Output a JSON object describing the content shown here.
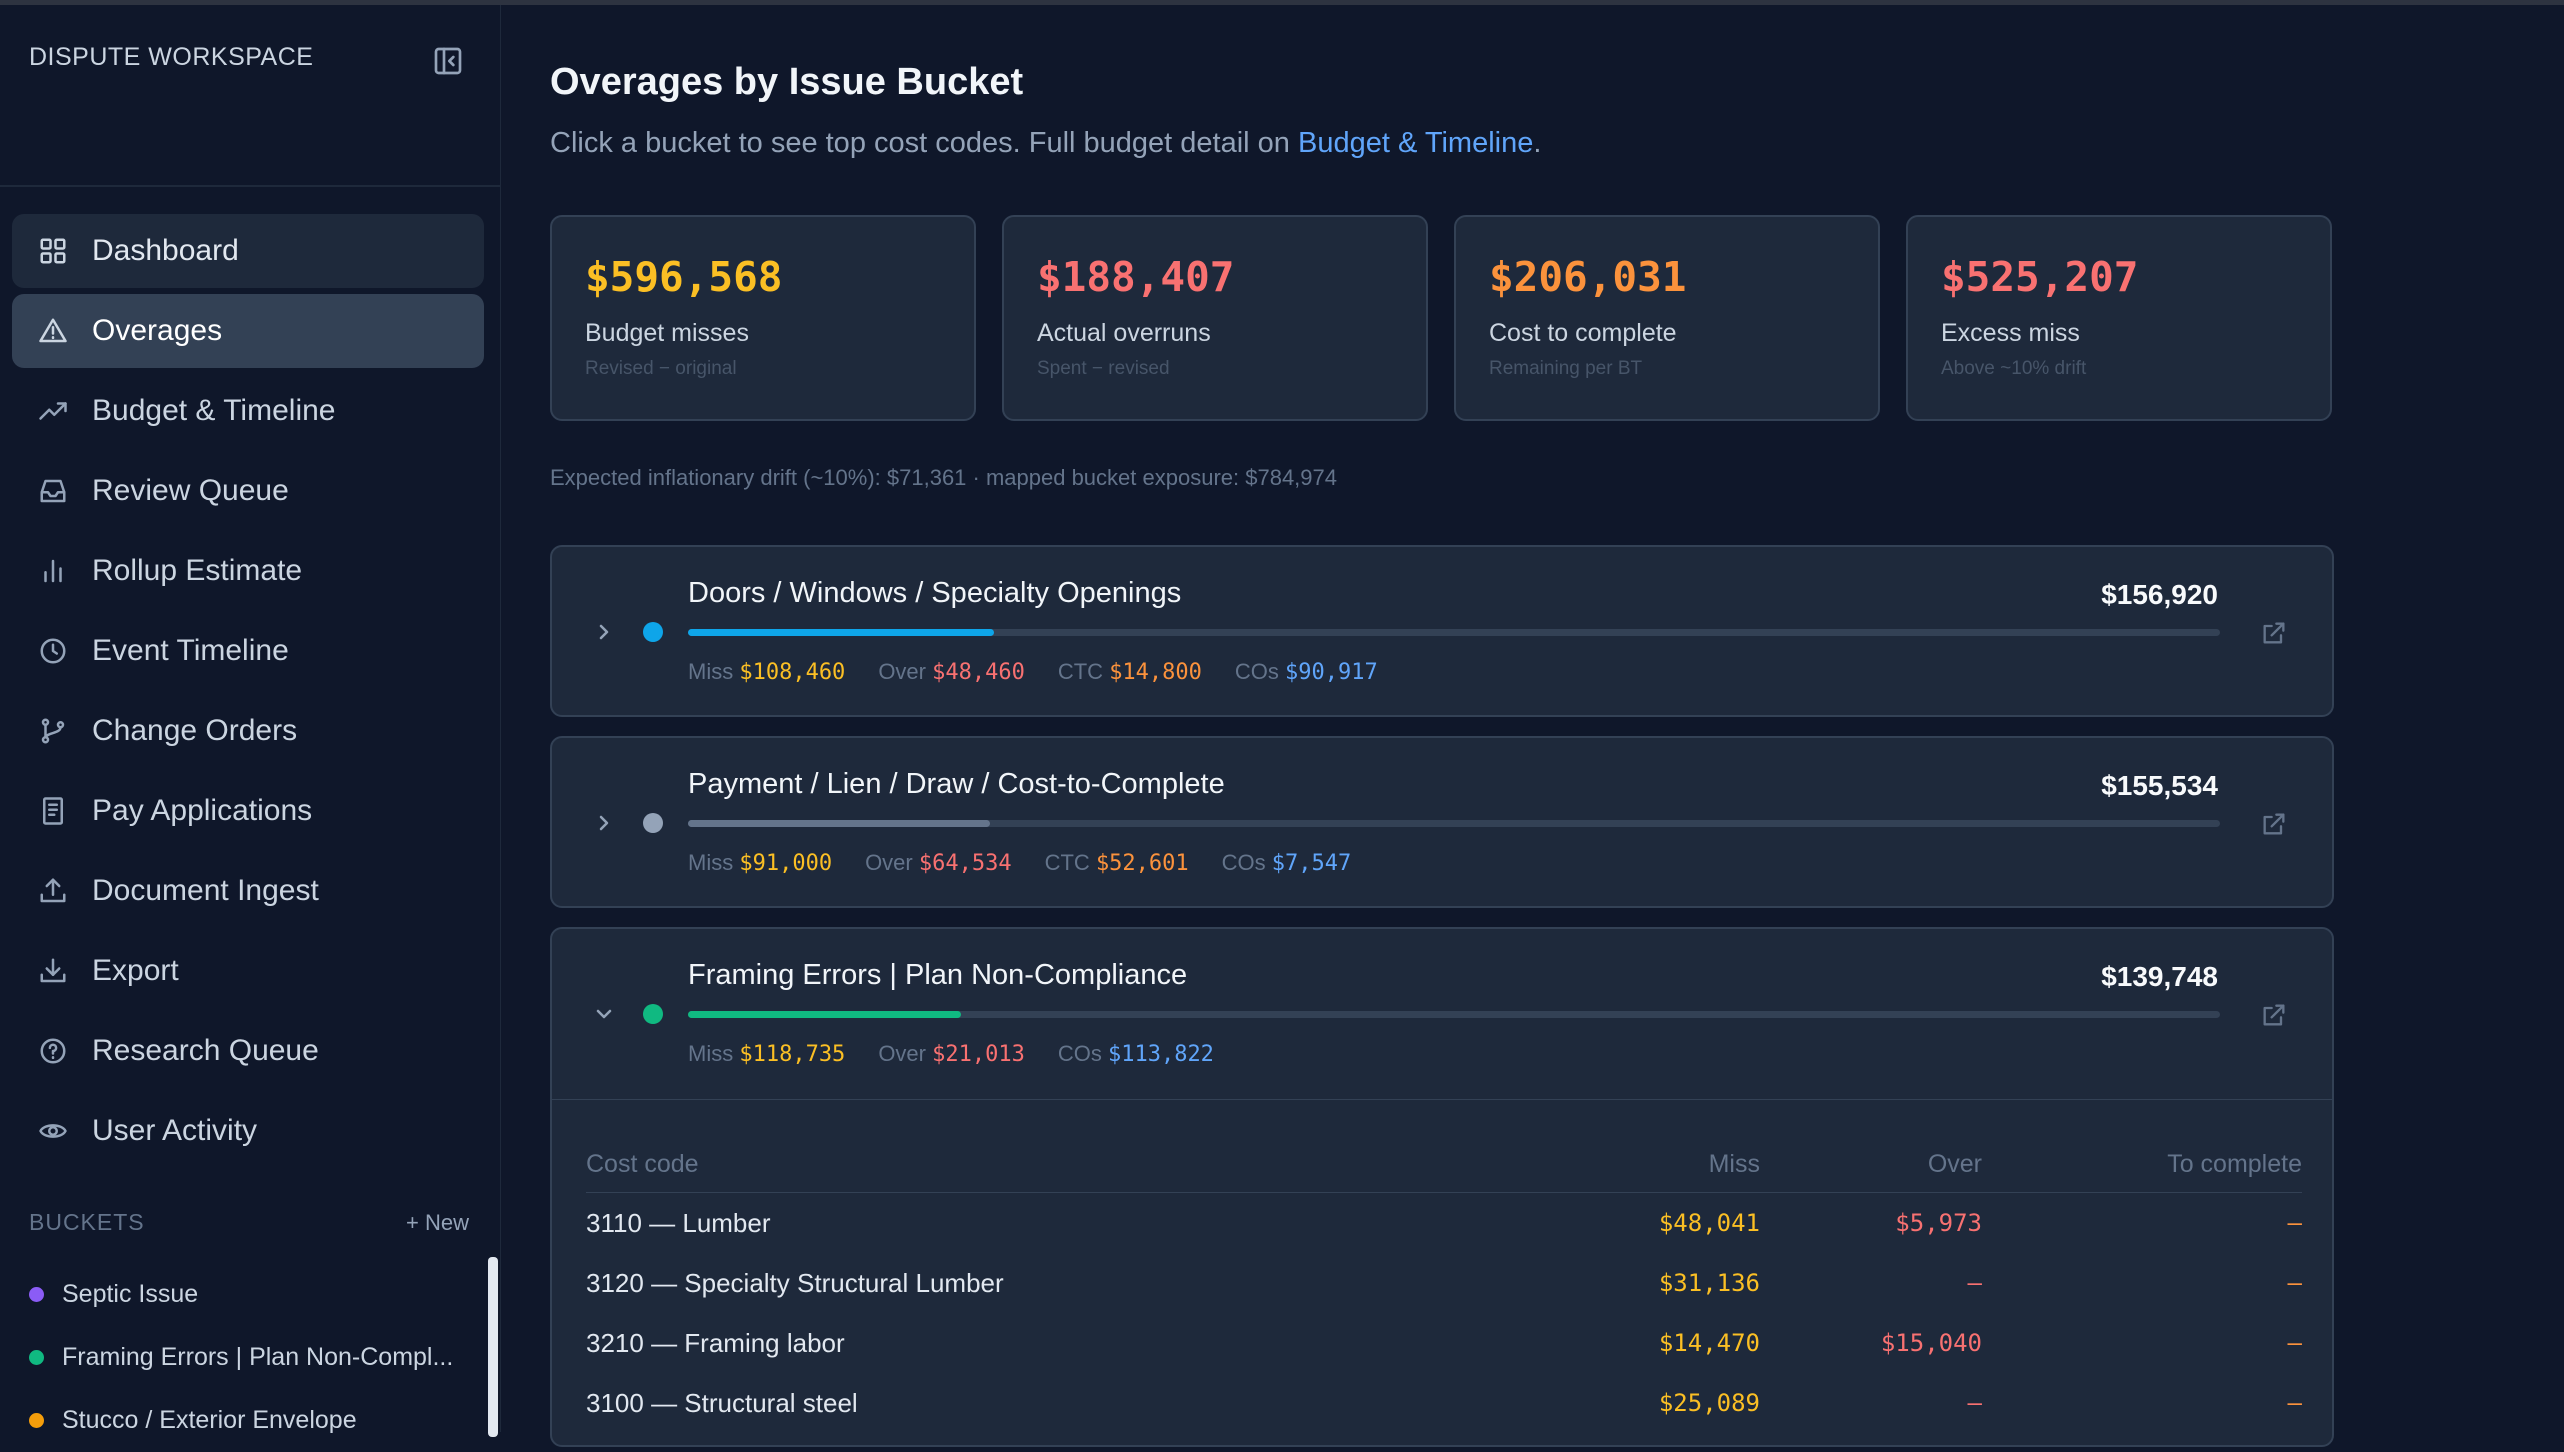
{
  "sidebar": {
    "workspace_title": "DISPUTE WORKSPACE",
    "nav": [
      {
        "label": "Dashboard",
        "icon": "dashboard-grid-icon"
      },
      {
        "label": "Overages",
        "icon": "warning-triangle-icon"
      },
      {
        "label": "Budget & Timeline",
        "icon": "trending-up-icon"
      },
      {
        "label": "Review Queue",
        "icon": "inbox-icon"
      },
      {
        "label": "Rollup Estimate",
        "icon": "bar-chart-icon"
      },
      {
        "label": "Event Timeline",
        "icon": "clock-icon"
      },
      {
        "label": "Change Orders",
        "icon": "git-branch-icon"
      },
      {
        "label": "Pay Applications",
        "icon": "receipt-icon"
      },
      {
        "label": "Document Ingest",
        "icon": "upload-icon"
      },
      {
        "label": "Export",
        "icon": "download-icon"
      },
      {
        "label": "Research Queue",
        "icon": "help-circle-icon"
      },
      {
        "label": "User Activity",
        "icon": "eye-icon"
      }
    ],
    "buckets_title": "BUCKETS",
    "new_label": "+ New",
    "buckets": [
      {
        "label": "Septic Issue",
        "color": "#8b5cf6"
      },
      {
        "label": "Framing Errors | Plan Non-Compl...",
        "color": "#10b981"
      },
      {
        "label": "Stucco / Exterior Envelope",
        "color": "#f59e0b"
      }
    ]
  },
  "main": {
    "title": "Overages by Issue Bucket",
    "subtitle_prefix": "Click a bucket to see top cost codes. Full budget detail on ",
    "subtitle_link": "Budget & Timeline",
    "subtitle_suffix": ".",
    "stats": [
      {
        "value": "$596,568",
        "label": "Budget misses",
        "hint": "Revised − original",
        "color": "#fbbf24"
      },
      {
        "value": "$188,407",
        "label": "Actual overruns",
        "hint": "Spent − revised",
        "color": "#f87171"
      },
      {
        "value": "$206,031",
        "label": "Cost to complete",
        "hint": "Remaining per BT",
        "color": "#fb923c"
      },
      {
        "value": "$525,207",
        "label": "Excess miss",
        "hint": "Above ~10% drift",
        "color": "#f87171"
      }
    ],
    "drift_note": "Expected inflationary drift (~10%): $71,361 · mapped bucket exposure: $784,974",
    "buckets": [
      {
        "name": "Doors / Windows / Specialty Openings",
        "total": "$156,920",
        "dot_color": "#0ea5e9",
        "bar_color": "#0ea5e9",
        "progress": 0.2,
        "expanded": false,
        "metrics": [
          {
            "label": "Miss",
            "value": "$108,460",
            "color": "#fbbf24"
          },
          {
            "label": "Over",
            "value": "$48,460",
            "color": "#f87171"
          },
          {
            "label": "CTC",
            "value": "$14,800",
            "color": "#fb923c"
          },
          {
            "label": "COs",
            "value": "$90,917",
            "color": "#60a5fa"
          }
        ]
      },
      {
        "name": "Payment / Lien / Draw / Cost-to-Complete",
        "total": "$155,534",
        "dot_color": "#94a3b8",
        "bar_color": "#64748b",
        "progress": 0.197,
        "expanded": false,
        "metrics": [
          {
            "label": "Miss",
            "value": "$91,000",
            "color": "#fbbf24"
          },
          {
            "label": "Over",
            "value": "$64,534",
            "color": "#f87171"
          },
          {
            "label": "CTC",
            "value": "$52,601",
            "color": "#fb923c"
          },
          {
            "label": "COs",
            "value": "$7,547",
            "color": "#60a5fa"
          }
        ]
      },
      {
        "name": "Framing Errors | Plan Non-Compliance",
        "total": "$139,748",
        "dot_color": "#10b981",
        "bar_color": "#10b981",
        "progress": 0.178,
        "expanded": true,
        "metrics": [
          {
            "label": "Miss",
            "value": "$118,735",
            "color": "#fbbf24"
          },
          {
            "label": "Over",
            "value": "$21,013",
            "color": "#f87171"
          },
          {
            "label": "COs",
            "value": "$113,822",
            "color": "#60a5fa"
          }
        ],
        "cost_codes": {
          "headers": [
            "Cost code",
            "Miss",
            "Over",
            "To complete"
          ],
          "rows": [
            {
              "code": "3110 — Lumber",
              "miss": "$48,041",
              "over": "$5,973",
              "to_complete": "–"
            },
            {
              "code": "3120 — Specialty Structural Lumber",
              "miss": "$31,136",
              "over": "–",
              "to_complete": "–"
            },
            {
              "code": "3210 — Framing labor",
              "miss": "$14,470",
              "over": "$15,040",
              "to_complete": "–"
            },
            {
              "code": "3100 — Structural steel",
              "miss": "$25,089",
              "over": "–",
              "to_complete": "–"
            }
          ]
        }
      }
    ],
    "colors": {
      "miss": "#fbbf24",
      "over": "#f87171",
      "to_complete": "#fb923c",
      "link": "#60a5fa"
    }
  }
}
